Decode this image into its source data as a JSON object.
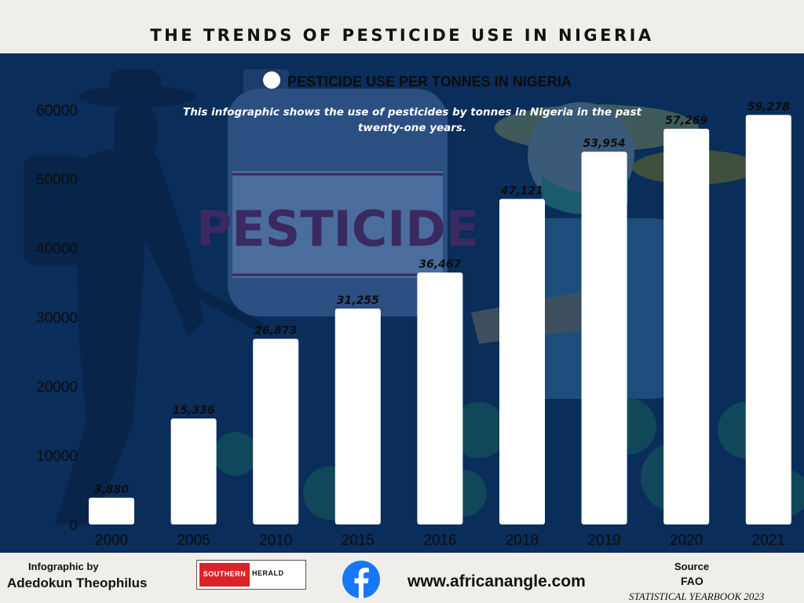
{
  "header": {
    "title": "THE TRENDS OF PESTICIDE USE IN NIGERIA"
  },
  "chart_data": {
    "type": "bar",
    "title": "THE TRENDS OF PESTICIDE USE IN NIGERIA",
    "subtitle": "This infographic shows the use of pesticides by tonnes in Nigeria in the past twenty-one years.",
    "series": [
      {
        "name": "PESTICIDE USE PER TONNES IN NIGERIA",
        "values": [
          3880,
          15336,
          26873,
          31255,
          36467,
          47121,
          53954,
          57269,
          59278
        ]
      }
    ],
    "categories": [
      "2000",
      "2005",
      "2010",
      "2015",
      "2016",
      "2018",
      "2019",
      "2020",
      "2021"
    ],
    "value_labels": [
      "3,880",
      "15,336",
      "26,873",
      "31,255",
      "36,467",
      "47,121",
      "53,954",
      "57,269",
      "59,278"
    ],
    "y_ticks": [
      "0",
      "10000",
      "20000",
      "30000",
      "40000",
      "50000",
      "60000"
    ],
    "ylim": [
      0,
      60000
    ],
    "xlabel": "",
    "ylabel": "",
    "legend_position": "top",
    "grid": false,
    "colors": {
      "bar": "#ffffff",
      "background": "#0a2d5a",
      "text": "#111111"
    }
  },
  "illustration": {
    "jug_label": "PESTICIDE"
  },
  "footer": {
    "credit_label": "Infographic by",
    "credit_name": "Adedokun Theophilus",
    "logo_left": "SOUTHERN",
    "logo_right": "HERALD",
    "social_icon": "facebook-icon",
    "website": "www.africanangle.com",
    "source_label": "Source",
    "source_org": "FAO",
    "source_detail": "STATISTICAL YEARBOOK 2023"
  }
}
